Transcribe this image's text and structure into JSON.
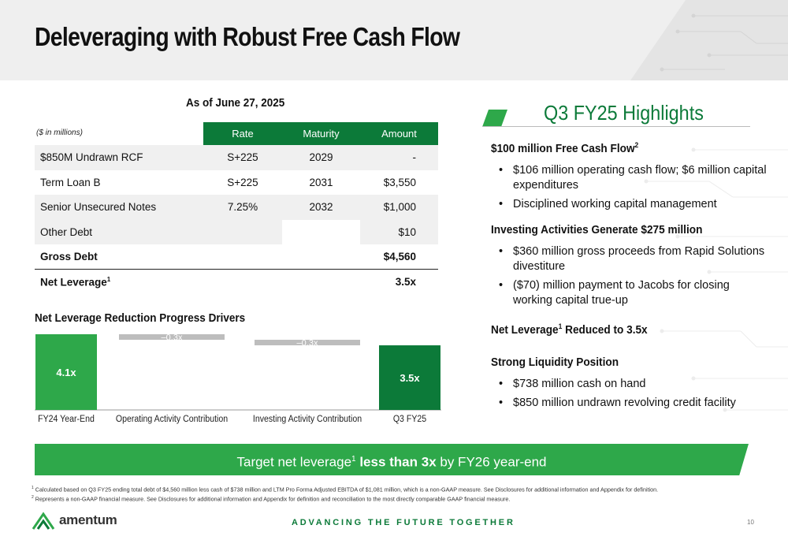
{
  "slide": {
    "title": "Deleveraging with Robust Free Cash Flow",
    "page_number": "10"
  },
  "debt_table": {
    "as_of": "As of June 27, 2025",
    "units": "($ in millions)",
    "headers": {
      "rate": "Rate",
      "maturity": "Maturity",
      "amount": "Amount"
    },
    "rows": [
      {
        "label": "$850M Undrawn RCF",
        "rate": "S+225",
        "maturity": "2029",
        "amount": "-"
      },
      {
        "label": "Term Loan B",
        "rate": "S+225",
        "maturity": "2031",
        "amount": "$3,550"
      },
      {
        "label": "Senior Unsecured Notes",
        "rate": "7.25%",
        "maturity": "2032",
        "amount": "$1,000"
      },
      {
        "label": "Other Debt",
        "rate": "",
        "maturity": "",
        "amount": "$10"
      }
    ],
    "gross_debt": {
      "label": "Gross Debt",
      "amount": "$4,560"
    },
    "net_leverage": {
      "label": "Net Leverage",
      "footnote": "1",
      "value": "3.5x"
    }
  },
  "chart_data": {
    "type": "bar",
    "subtype": "waterfall",
    "title": "Net Leverage Reduction Progress Drivers",
    "categories": [
      "FY24 Year-End",
      "Operating Activity Contribution",
      "Investing Activity Contribution",
      "Q3 FY25"
    ],
    "values": [
      4.1,
      -0.3,
      -0.3,
      3.5
    ],
    "data_labels": [
      "4.1x",
      "–0.3x",
      "–0.3x",
      "3.5x"
    ],
    "bar_roles": [
      "total",
      "delta",
      "delta",
      "total"
    ],
    "colors": {
      "total_start": "#2ea84a",
      "delta": "#bdbdbd",
      "total_end": "#0c7a39"
    }
  },
  "highlights": {
    "title": "Q3 FY25 Highlights",
    "sections": [
      {
        "heading": "$100 million Free Cash Flow",
        "sup": "2",
        "bullets": [
          "$106 million operating cash flow; $6 million capital expenditures",
          "Disciplined working capital management"
        ]
      },
      {
        "heading": "Investing Activities Generate $275 million",
        "sup": "",
        "bullets": [
          "$360 million gross proceeds from Rapid Solutions divestiture",
          "($70) million payment to Jacobs for closing working capital true-up"
        ]
      },
      {
        "heading_pre": "Net Leverage",
        "sup": "1",
        "heading_post": " Reduced to 3.5x",
        "bullets": []
      },
      {
        "heading": "Strong Liquidity Position",
        "sup": "",
        "bullets": [
          "$738 million cash on hand",
          "$850 million undrawn revolving credit facility"
        ]
      }
    ]
  },
  "banner": {
    "pre": "Target net leverage",
    "sup": "1",
    "bold": " less than 3x",
    "post": " by FY26 year-end"
  },
  "footnotes": [
    {
      "num": "1",
      "text": "Calculated based on Q3 FY25 ending total debt of $4,560 million less cash of $738 million and LTM Pro Forma Adjusted EBITDA of $1,081 million, which is a non-GAAP measure. See Disclosures for additional information and Appendix for definition."
    },
    {
      "num": "2",
      "text": "Represents a non-GAAP financial measure. See Disclosures for additional information and Appendix for definition and reconciliation to the most directly comparable GAAP financial measure."
    }
  ],
  "brand": {
    "logo_text": "amentum",
    "tagline": "ADVANCING THE FUTURE TOGETHER",
    "colors": {
      "green": "#0c7a39",
      "bright_green": "#2ea84a",
      "gray": "#bdbdbd"
    }
  }
}
